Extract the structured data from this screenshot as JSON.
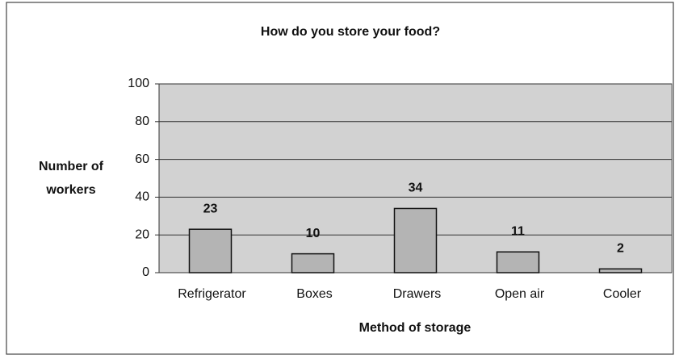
{
  "chart_data": {
    "type": "bar",
    "title": "How do you store your food?",
    "ylabel": [
      "Number of",
      "workers"
    ],
    "xlabel": "Method of storage",
    "categories": [
      "Refrigerator",
      "Boxes",
      "Drawers",
      "Open air",
      "Cooler"
    ],
    "values": [
      23,
      10,
      34,
      11,
      2
    ],
    "color": "#b4b4b4",
    "ylim": [
      0,
      100
    ],
    "yticks": [
      0,
      20,
      40,
      60,
      80,
      100
    ],
    "grid": true,
    "show_value_labels": true
  }
}
